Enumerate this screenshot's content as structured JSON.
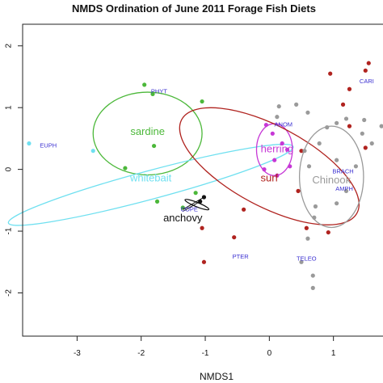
{
  "chart_data": {
    "type": "scatter",
    "title": "NMDS Ordination of June 2011 Forage Fish Diets",
    "xlabel": "NMDS1",
    "ylabel": "",
    "xlim": [
      -3.85,
      1.95
    ],
    "ylim": [
      -2.7,
      2.35
    ],
    "xticks": [
      -3,
      -2,
      -1,
      0,
      1
    ],
    "yticks": [
      -2,
      -1,
      0,
      1,
      2
    ],
    "grid": false,
    "colors": {
      "sardine": "#4cb83a",
      "whitebait": "#6fe0f0",
      "anchovy": "#111111",
      "herring": "#c637d6",
      "surf": "#b0231f",
      "chinook": "#9a9a9a",
      "prey": "#3a2fd1"
    },
    "series": [
      {
        "name": "sardine",
        "points": [
          [
            -1.95,
            1.37
          ],
          [
            -1.82,
            1.22
          ],
          [
            -1.05,
            1.1
          ],
          [
            -1.8,
            0.38
          ],
          [
            -2.25,
            0.02
          ],
          [
            -1.15,
            -0.38
          ],
          [
            -1.75,
            -0.52
          ],
          [
            -1.35,
            -0.62
          ]
        ]
      },
      {
        "name": "whitebait",
        "points": [
          [
            -3.75,
            0.42
          ],
          [
            -2.75,
            0.3
          ]
        ]
      },
      {
        "name": "anchovy",
        "points": [
          [
            -1.02,
            -0.45
          ],
          [
            -1.08,
            -0.52
          ]
        ]
      },
      {
        "name": "herring",
        "points": [
          [
            -0.05,
            0.72
          ],
          [
            0.05,
            0.58
          ],
          [
            0.2,
            0.42
          ],
          [
            0.28,
            0.32
          ],
          [
            0.08,
            0.15
          ],
          [
            0.32,
            0.05
          ],
          [
            -0.08,
            0.0
          ],
          [
            0.12,
            -0.1
          ]
        ]
      },
      {
        "name": "surf",
        "points": [
          [
            1.55,
            1.72
          ],
          [
            1.5,
            1.6
          ],
          [
            0.95,
            1.55
          ],
          [
            1.25,
            1.3
          ],
          [
            1.15,
            1.05
          ],
          [
            1.25,
            0.7
          ],
          [
            1.5,
            0.35
          ],
          [
            0.5,
            0.3
          ],
          [
            0.45,
            -0.35
          ],
          [
            -0.4,
            -0.65
          ],
          [
            -1.05,
            -0.95
          ],
          [
            -0.55,
            -1.1
          ],
          [
            -1.02,
            -1.5
          ],
          [
            0.92,
            -1.02
          ],
          [
            0.58,
            -0.95
          ]
        ]
      },
      {
        "name": "Chinook",
        "points": [
          [
            0.15,
            1.02
          ],
          [
            0.12,
            0.85
          ],
          [
            0.42,
            1.05
          ],
          [
            0.6,
            0.92
          ],
          [
            0.9,
            0.68
          ],
          [
            1.05,
            0.75
          ],
          [
            1.2,
            0.82
          ],
          [
            1.48,
            0.8
          ],
          [
            1.45,
            0.58
          ],
          [
            1.75,
            0.7
          ],
          [
            1.6,
            0.42
          ],
          [
            0.78,
            0.42
          ],
          [
            0.55,
            0.3
          ],
          [
            0.62,
            0.05
          ],
          [
            1.05,
            0.15
          ],
          [
            1.35,
            0.05
          ],
          [
            1.2,
            -0.35
          ],
          [
            1.05,
            -0.55
          ],
          [
            0.72,
            -0.6
          ],
          [
            0.7,
            -0.78
          ],
          [
            0.6,
            -1.12
          ],
          [
            0.68,
            -1.72
          ],
          [
            0.68,
            -1.92
          ],
          [
            0.5,
            -1.5
          ]
        ]
      }
    ],
    "ellipses": [
      {
        "name": "sardine",
        "center": [
          -1.9,
          0.58
        ],
        "rx": 0.85,
        "ry": 0.67,
        "angle_deg": 0
      },
      {
        "name": "whitebait",
        "center": [
          -1.85,
          -0.25
        ],
        "rx": 2.3,
        "ry": 0.23,
        "angle_deg": -15
      },
      {
        "name": "anchovy",
        "center": [
          -1.13,
          -0.57
        ],
        "rx": 0.2,
        "ry": 0.035,
        "angle_deg": 22
      },
      {
        "name": "herring",
        "center": [
          0.08,
          0.32
        ],
        "rx": 0.28,
        "ry": 0.42,
        "angle_deg": 0
      },
      {
        "name": "surf",
        "center": [
          0.0,
          0.05
        ],
        "rx": 1.55,
        "ry": 0.65,
        "angle_deg": 28
      },
      {
        "name": "Chinook",
        "center": [
          0.97,
          -0.12
        ],
        "rx": 0.5,
        "ry": 0.82,
        "angle_deg": 0
      }
    ],
    "species_labels": [
      {
        "text": "sardine",
        "x": -1.9,
        "y": 0.6,
        "series": "sardine"
      },
      {
        "text": "whitebait",
        "x": -1.85,
        "y": -0.15,
        "series": "whitebait"
      },
      {
        "text": "anchovy",
        "x": -1.35,
        "y": -0.8,
        "series": "anchovy"
      },
      {
        "text": "herring",
        "x": 0.12,
        "y": 0.32,
        "series": "herring"
      },
      {
        "text": "surf",
        "x": 0.0,
        "y": -0.15,
        "series": "surf"
      },
      {
        "text": "Chinook",
        "x": 0.97,
        "y": -0.18,
        "series": "Chinook"
      }
    ],
    "prey_labels": [
      {
        "text": "PHYT",
        "x": -1.72,
        "y": 1.26
      },
      {
        "text": "EUPH",
        "x": -3.45,
        "y": 0.38
      },
      {
        "text": "ANOM",
        "x": 0.22,
        "y": 0.72
      },
      {
        "text": "CARI",
        "x": 1.52,
        "y": 1.42
      },
      {
        "text": "BRACH",
        "x": 1.15,
        "y": -0.04
      },
      {
        "text": "AMPH",
        "x": 1.17,
        "y": -0.32
      },
      {
        "text": "COPE",
        "x": -1.25,
        "y": -0.65
      },
      {
        "text": "PTER",
        "x": -0.45,
        "y": -1.42
      },
      {
        "text": "TELEO",
        "x": 0.58,
        "y": -1.45
      }
    ]
  }
}
